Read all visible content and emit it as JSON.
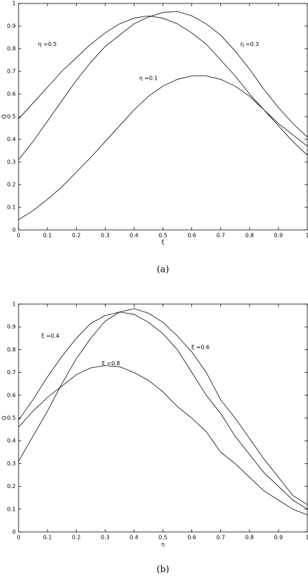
{
  "chart_data": [
    {
      "type": "line",
      "xlabel": "ξ",
      "ylabel": "Q",
      "caption": "(a)",
      "x": [
        0,
        0.05,
        0.1,
        0.15,
        0.2,
        0.25,
        0.3,
        0.35,
        0.4,
        0.45,
        0.5,
        0.55,
        0.6,
        0.65,
        0.7,
        0.75,
        0.8,
        0.85,
        0.9,
        0.95,
        1
      ],
      "series": [
        {
          "name": "η =0.5",
          "color": "#000000",
          "values": [
            0.49,
            0.56,
            0.63,
            0.7,
            0.76,
            0.82,
            0.87,
            0.91,
            0.935,
            0.945,
            0.935,
            0.91,
            0.87,
            0.82,
            0.75,
            0.68,
            0.6,
            0.53,
            0.47,
            0.42,
            0.37
          ]
        },
        {
          "name": "η =0.3",
          "color": "#000000",
          "values": [
            0.31,
            0.39,
            0.48,
            0.57,
            0.66,
            0.74,
            0.81,
            0.86,
            0.91,
            0.94,
            0.96,
            0.965,
            0.945,
            0.91,
            0.86,
            0.79,
            0.71,
            0.62,
            0.54,
            0.47,
            0.41
          ]
        },
        {
          "name": "η =0.1",
          "color": "#000000",
          "values": [
            0.045,
            0.085,
            0.135,
            0.19,
            0.255,
            0.32,
            0.39,
            0.46,
            0.53,
            0.59,
            0.635,
            0.665,
            0.68,
            0.68,
            0.665,
            0.635,
            0.59,
            0.53,
            0.46,
            0.39,
            0.33
          ]
        }
      ],
      "xlim": [
        0,
        1
      ],
      "ylim": [
        0,
        1
      ],
      "xticks": [
        0,
        0.1,
        0.2,
        0.3,
        0.4,
        0.5,
        0.6,
        0.7,
        0.8,
        0.9,
        1
      ],
      "yticks": [
        0,
        0.1,
        0.2,
        0.3,
        0.4,
        0.5,
        0.6,
        0.7,
        0.8,
        0.9,
        1
      ]
    },
    {
      "type": "line",
      "xlabel": "η",
      "ylabel": "Q",
      "caption": "(b)",
      "x": [
        0,
        0.05,
        0.1,
        0.15,
        0.2,
        0.25,
        0.3,
        0.35,
        0.4,
        0.45,
        0.5,
        0.55,
        0.6,
        0.65,
        0.7,
        0.75,
        0.8,
        0.85,
        0.9,
        0.95,
        1
      ],
      "series": [
        {
          "name": "ξ =0.4",
          "color": "#000000",
          "values": [
            0.49,
            0.58,
            0.68,
            0.77,
            0.85,
            0.915,
            0.95,
            0.965,
            0.955,
            0.92,
            0.87,
            0.8,
            0.7,
            0.6,
            0.52,
            0.42,
            0.34,
            0.26,
            0.2,
            0.14,
            0.1
          ]
        },
        {
          "name": "ξ =0.6",
          "color": "#000000",
          "values": [
            0.31,
            0.42,
            0.53,
            0.65,
            0.76,
            0.85,
            0.925,
            0.965,
            0.98,
            0.96,
            0.92,
            0.86,
            0.79,
            0.7,
            0.58,
            0.5,
            0.41,
            0.32,
            0.24,
            0.16,
            0.12
          ]
        },
        {
          "name": "ξ =0.8",
          "color": "#000000",
          "values": [
            0.46,
            0.53,
            0.59,
            0.64,
            0.69,
            0.72,
            0.73,
            0.725,
            0.7,
            0.665,
            0.615,
            0.55,
            0.5,
            0.44,
            0.35,
            0.3,
            0.24,
            0.18,
            0.14,
            0.1,
            0.075
          ]
        }
      ],
      "xlim": [
        0,
        1
      ],
      "ylim": [
        0,
        1
      ],
      "xticks": [
        0,
        0.1,
        0.2,
        0.3,
        0.4,
        0.5,
        0.6,
        0.7,
        0.8,
        0.9,
        1
      ],
      "yticks": [
        0,
        0.1,
        0.2,
        0.3,
        0.4,
        0.5,
        0.6,
        0.7,
        0.8,
        0.9,
        1
      ]
    }
  ]
}
